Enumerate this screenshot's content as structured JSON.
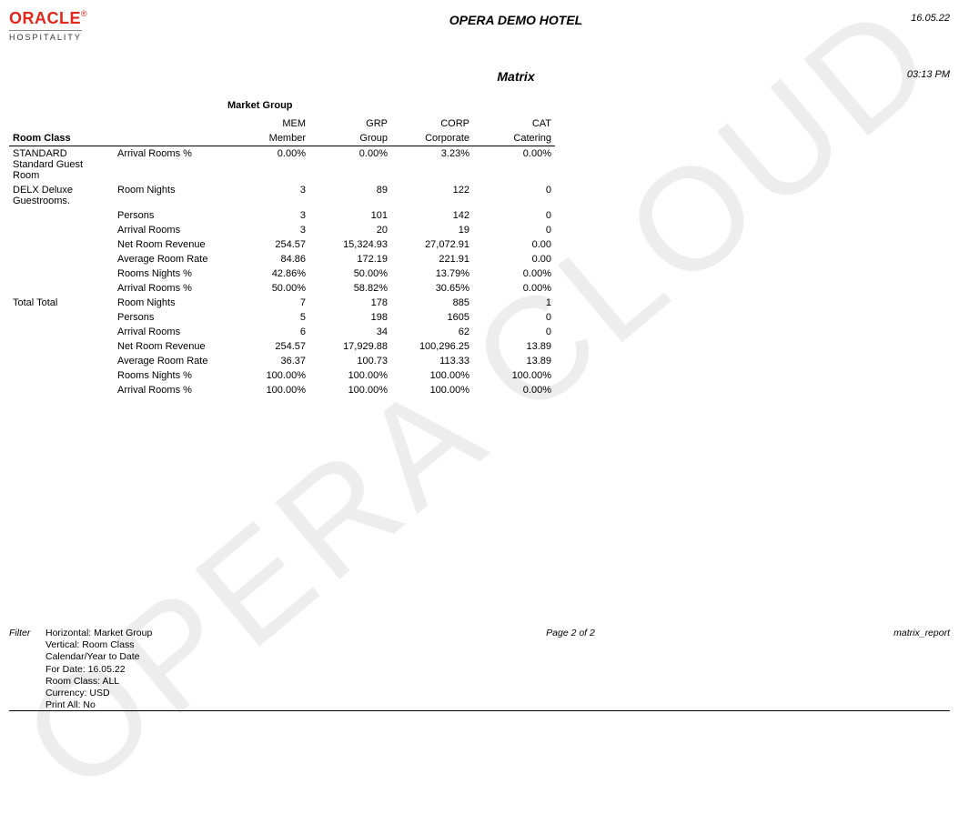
{
  "watermark": "OPERA CLOUD",
  "logo": {
    "brand": "ORACLE",
    "reg": "®",
    "sub": "HOSPITALITY"
  },
  "header": {
    "hotel": "OPERA DEMO HOTEL",
    "date": "16.05.22",
    "title": "Matrix",
    "time": "03:13 PM"
  },
  "market_group_label": "Market Group",
  "room_class_label": "Room Class",
  "columns": [
    {
      "code": "MEM",
      "name": "Member"
    },
    {
      "code": "GRP",
      "name": "Group"
    },
    {
      "code": "CORP",
      "name": "Corporate"
    },
    {
      "code": "CAT",
      "name": "Catering"
    }
  ],
  "sections": [
    {
      "class_name": "STANDARD Standard Guest Room",
      "rows": [
        {
          "metric": "Arrival Rooms %",
          "vals": [
            "0.00%",
            "0.00%",
            "3.23%",
            "0.00%"
          ]
        }
      ]
    },
    {
      "class_name": "DELX Deluxe Guestrooms.",
      "rows": [
        {
          "metric": "Room Nights",
          "vals": [
            "3",
            "89",
            "122",
            "0"
          ]
        },
        {
          "metric": "Persons",
          "vals": [
            "3",
            "101",
            "142",
            "0"
          ]
        },
        {
          "metric": "Arrival Rooms",
          "vals": [
            "3",
            "20",
            "19",
            "0"
          ]
        },
        {
          "metric": "Net Room Revenue",
          "vals": [
            "254.57",
            "15,324.93",
            "27,072.91",
            "0.00"
          ]
        },
        {
          "metric": "Average Room Rate",
          "vals": [
            "84.86",
            "172.19",
            "221.91",
            "0.00"
          ]
        },
        {
          "metric": "Rooms Nights %",
          "vals": [
            "42.86%",
            "50.00%",
            "13.79%",
            "0.00%"
          ]
        },
        {
          "metric": "Arrival Rooms %",
          "vals": [
            "50.00%",
            "58.82%",
            "30.65%",
            "0.00%"
          ]
        }
      ]
    },
    {
      "class_name": "Total Total",
      "rows": [
        {
          "metric": "Room Nights",
          "vals": [
            "7",
            "178",
            "885",
            "1"
          ]
        },
        {
          "metric": "Persons",
          "vals": [
            "5",
            "198",
            "1605",
            "0"
          ]
        },
        {
          "metric": "Arrival Rooms",
          "vals": [
            "6",
            "34",
            "62",
            "0"
          ]
        },
        {
          "metric": "Net Room Revenue",
          "vals": [
            "254.57",
            "17,929.88",
            "100,296.25",
            "13.89"
          ]
        },
        {
          "metric": "Average Room Rate",
          "vals": [
            "36.37",
            "100.73",
            "113.33",
            "13.89"
          ]
        },
        {
          "metric": "Rooms Nights %",
          "vals": [
            "100.00%",
            "100.00%",
            "100.00%",
            "100.00%"
          ]
        },
        {
          "metric": "Arrival Rooms %",
          "vals": [
            "100.00%",
            "100.00%",
            "100.00%",
            "0.00%"
          ]
        }
      ]
    }
  ],
  "footer": {
    "filter_label": "Filter",
    "filter_lines": [
      "Horizontal: Market Group",
      "Vertical: Room Class",
      "Calendar/Year to Date",
      "For Date: 16.05.22",
      "Room Class: ALL",
      "Currency: USD",
      "Print All: No"
    ],
    "page": "Page 2 of 2",
    "report_id": "matrix_report"
  }
}
